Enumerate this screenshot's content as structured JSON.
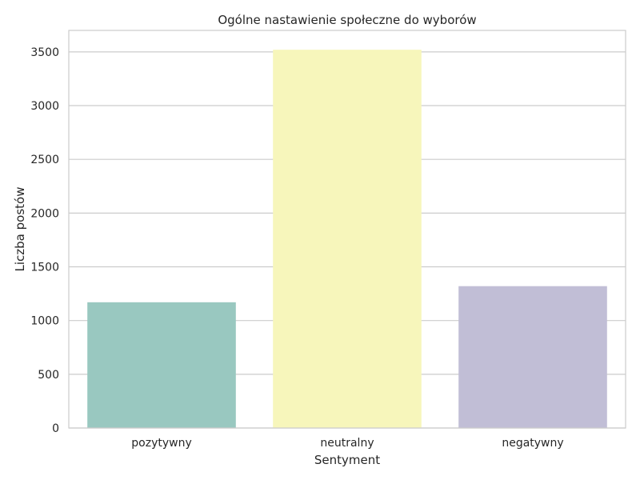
{
  "chart_data": {
    "type": "bar",
    "title": "Ogólne nastawienie społeczne do wyborów",
    "xlabel": "Sentyment",
    "ylabel": "Liczba postów",
    "categories": [
      "pozytywny",
      "neutralny",
      "negatywny"
    ],
    "values": [
      1170,
      3520,
      1320
    ],
    "colors": [
      "#99c8c0",
      "#f7f6bb",
      "#c1bed6"
    ],
    "ylim": [
      0,
      3700
    ],
    "yticks": [
      0,
      500,
      1000,
      1500,
      2000,
      2500,
      3000,
      3500
    ],
    "grid": "y",
    "legend": "none"
  }
}
